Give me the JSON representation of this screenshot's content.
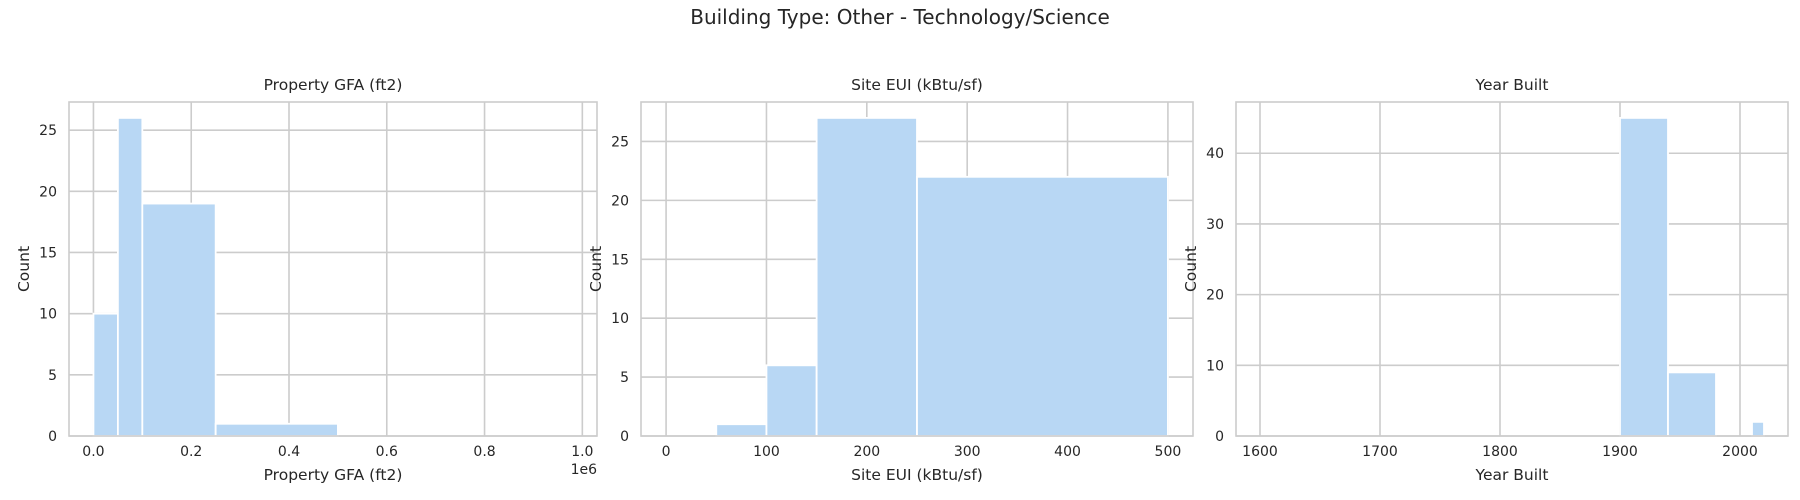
{
  "suptitle": "Building Type: Other - Technology/Science",
  "colors": {
    "bar": "#b8d7f4",
    "bar_edge": "#ffffff",
    "grid": "#cccccc",
    "frame": "#cccccc",
    "text": "#262626"
  },
  "chart_data": [
    {
      "type": "bar",
      "title": "Property GFA (ft2)",
      "xlabel": "Property GFA (ft2)",
      "ylabel": "Count",
      "x_offset_label": "1e6",
      "xlim": [
        -0.05,
        1.03
      ],
      "ylim": [
        0,
        27.3
      ],
      "grid": true,
      "xticks": [
        0.0,
        0.2,
        0.4,
        0.6,
        0.8,
        1.0
      ],
      "xtick_labels": [
        "0.0",
        "0.2",
        "0.4",
        "0.6",
        "0.8",
        "1.0"
      ],
      "yticks": [
        0,
        5,
        10,
        15,
        20,
        25
      ],
      "ytick_labels": [
        "0",
        "5",
        "10",
        "15",
        "20",
        "25"
      ],
      "bins": [
        {
          "x0": 0.0,
          "x1": 0.05,
          "count": 10
        },
        {
          "x0": 0.05,
          "x1": 0.1,
          "count": 26
        },
        {
          "x0": 0.1,
          "x1": 0.25,
          "count": 19
        },
        {
          "x0": 0.25,
          "x1": 0.5,
          "count": 1
        },
        {
          "x0": 0.5,
          "x1": 1.0,
          "count": 0
        }
      ]
    },
    {
      "type": "bar",
      "title": "Site EUI (kBtu/sf)",
      "xlabel": "Site EUI (kBtu/sf)",
      "ylabel": "Count",
      "xlim": [
        -25,
        525
      ],
      "ylim": [
        0,
        28.35
      ],
      "grid": true,
      "xticks": [
        0,
        100,
        200,
        300,
        400,
        500
      ],
      "xtick_labels": [
        "0",
        "100",
        "200",
        "300",
        "400",
        "500"
      ],
      "yticks": [
        0,
        5,
        10,
        15,
        20,
        25
      ],
      "yticks_labels_note": "",
      "ytick_labels": [
        "0",
        "5",
        "10",
        "15",
        "20",
        "25"
      ],
      "bins": [
        {
          "x0": 0,
          "x1": 50,
          "count": 0
        },
        {
          "x0": 50,
          "x1": 100,
          "count": 1
        },
        {
          "x0": 100,
          "x1": 150,
          "count": 6
        },
        {
          "x0": 150,
          "x1": 250,
          "count": 27
        },
        {
          "x0": 250,
          "x1": 500,
          "count": 22
        }
      ]
    },
    {
      "type": "bar",
      "title": "Year Built",
      "xlabel": "Year Built",
      "ylabel": "Count",
      "xlim": [
        1580,
        2040
      ],
      "ylim": [
        0,
        47.25
      ],
      "grid": true,
      "xticks": [
        1600,
        1700,
        1800,
        1900,
        2000
      ],
      "xtick_labels": [
        "1600",
        "1700",
        "1800",
        "1900",
        "2000"
      ],
      "yticks": [
        0,
        10,
        20,
        30,
        40
      ],
      "ytick_labels": [
        "0",
        "10",
        "20",
        "30",
        "40"
      ],
      "bins": [
        {
          "x0": 1600,
          "x1": 1900,
          "count": 0
        },
        {
          "x0": 1900,
          "x1": 1940,
          "count": 45
        },
        {
          "x0": 1940,
          "x1": 1980,
          "count": 9
        },
        {
          "x0": 1980,
          "x1": 2010,
          "count": 0
        },
        {
          "x0": 2010,
          "x1": 2020,
          "count": 2
        }
      ]
    }
  ]
}
